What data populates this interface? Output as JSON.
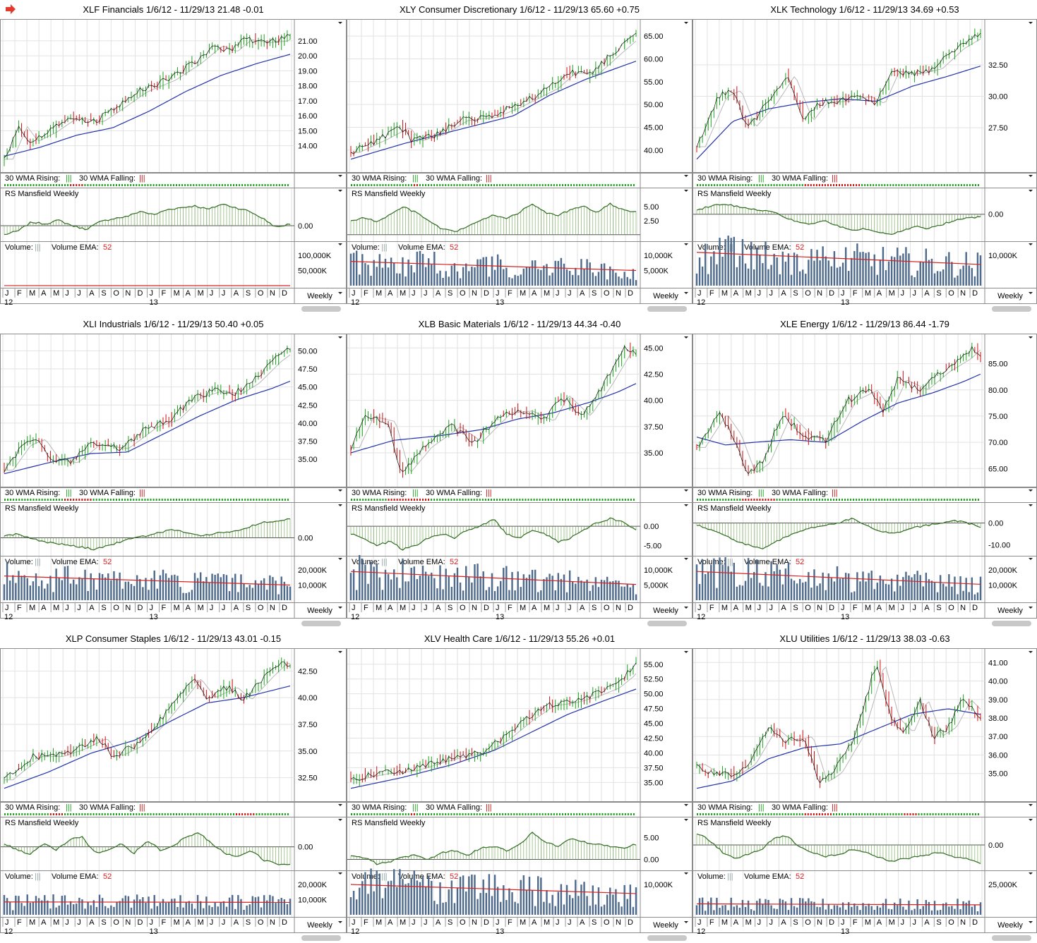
{
  "colors": {
    "bull": "#1aa31a",
    "bear": "#cc1111",
    "wma30": "#2233aa",
    "wma10": "#b8b8b8",
    "rs": "#2e6b1e",
    "volume": "#4d6a8c",
    "ema": "#d82020",
    "grid": "#e2e2e2",
    "border": "#8a8a8a"
  },
  "icons": {
    "title_marker": "red-right-arrow-icon"
  },
  "common": {
    "date_range": "1/6/12 - 11/29/13",
    "wma_rising_label": "30 WMA Rising:",
    "wma_falling_label": "30 WMA Falling:",
    "glyph": "|||",
    "rs_label": "RS Mansfield Weekly",
    "volume_label": "Volume:",
    "volume_ema_label": "Volume EMA:",
    "volume_ema_period": "52",
    "period_label": "Weekly",
    "months": [
      "J",
      "F",
      "M",
      "A",
      "M",
      "J",
      "J",
      "A",
      "S",
      "O",
      "N",
      "D",
      "J",
      "F",
      "M",
      "A",
      "M",
      "J",
      "J",
      "A",
      "S",
      "O",
      "N",
      "D"
    ],
    "year_labels": [
      "12",
      "13"
    ]
  },
  "chart_data": [
    {
      "type": "line",
      "symbol": "XLF",
      "name": "Financials",
      "last": "21.48",
      "change": "-0.01",
      "price_ticks": [
        "21.00",
        "20.00",
        "19.00",
        "18.00",
        "17.00",
        "16.00",
        "15.00",
        "14.00"
      ],
      "price_path": [
        [
          0,
          13.1
        ],
        [
          4,
          15.3
        ],
        [
          7,
          14.3
        ],
        [
          12,
          14.9
        ],
        [
          18,
          15.9
        ],
        [
          25,
          15.6
        ],
        [
          30,
          16.4
        ],
        [
          37,
          17.6
        ],
        [
          45,
          18.4
        ],
        [
          52,
          19.5
        ],
        [
          58,
          20.7
        ],
        [
          62,
          20.3
        ],
        [
          66,
          21.1
        ],
        [
          71,
          20.9
        ],
        [
          76,
          21.0
        ],
        [
          79,
          21.5
        ]
      ],
      "wma30_path": [
        [
          0,
          13.3
        ],
        [
          10,
          13.9
        ],
        [
          20,
          14.7
        ],
        [
          30,
          15.2
        ],
        [
          40,
          16.3
        ],
        [
          50,
          17.6
        ],
        [
          60,
          18.7
        ],
        [
          70,
          19.5
        ],
        [
          79,
          20.1
        ]
      ],
      "falling_weeks": [
        [
          18,
          22
        ]
      ],
      "rs_ticks": [
        "0.00"
      ],
      "rs_values": [
        -5,
        -3,
        2,
        1,
        3,
        0,
        -2,
        2,
        4,
        5,
        8,
        6,
        9,
        10,
        11,
        9,
        12,
        10,
        8,
        4,
        -1,
        1
      ],
      "volume_ticks": [
        "100,000K",
        "50,000K"
      ],
      "volume_ema": [
        88,
        60
      ]
    },
    {
      "type": "line",
      "symbol": "XLY",
      "name": "Consumer Discretionary",
      "last": "65.60",
      "change": "+0.75",
      "price_ticks": [
        "65.00",
        "60.00",
        "55.00",
        "50.00",
        "45.00",
        "40.00"
      ],
      "price_path": [
        [
          0,
          39.5
        ],
        [
          8,
          42.5
        ],
        [
          14,
          45.0
        ],
        [
          17,
          42.0
        ],
        [
          24,
          43.5
        ],
        [
          30,
          46.5
        ],
        [
          38,
          47.2
        ],
        [
          45,
          49.5
        ],
        [
          55,
          53.5
        ],
        [
          60,
          57.0
        ],
        [
          66,
          56.5
        ],
        [
          73,
          61.5
        ],
        [
          79,
          65.6
        ]
      ],
      "wma30_path": [
        [
          0,
          38.0
        ],
        [
          15,
          41.5
        ],
        [
          30,
          44.5
        ],
        [
          45,
          47.5
        ],
        [
          55,
          52.0
        ],
        [
          65,
          55.5
        ],
        [
          79,
          59.5
        ]
      ],
      "falling_weeks": [
        [
          17,
          19
        ]
      ],
      "rs_ticks": [
        "5.00",
        "2.50"
      ],
      "rs_values": [
        2.5,
        3,
        2.4,
        3.5,
        5,
        4,
        2.5,
        1,
        0.5,
        1.5,
        2.5,
        3.5,
        3,
        4,
        5.5,
        4,
        3.5,
        4.5,
        5,
        4,
        5.5,
        4.5,
        4
      ],
      "volume_ticks": [
        "10,000K",
        "5,000K"
      ],
      "volume_ema": [
        8000,
        5000
      ]
    },
    {
      "type": "line",
      "symbol": "XLK",
      "name": "Technology",
      "last": "34.69",
      "change": "+0.53",
      "price_ticks": [
        "32.50",
        "30.00",
        "27.50"
      ],
      "price_path": [
        [
          0,
          26.0
        ],
        [
          6,
          30.0
        ],
        [
          10,
          30.5
        ],
        [
          14,
          27.5
        ],
        [
          20,
          29.5
        ],
        [
          25,
          31.7
        ],
        [
          30,
          28.0
        ],
        [
          34,
          29.5
        ],
        [
          40,
          29.6
        ],
        [
          46,
          30.0
        ],
        [
          50,
          29.4
        ],
        [
          54,
          32.0
        ],
        [
          60,
          31.8
        ],
        [
          66,
          32.2
        ],
        [
          72,
          33.8
        ],
        [
          79,
          35.0
        ]
      ],
      "wma30_path": [
        [
          0,
          25.0
        ],
        [
          10,
          28.0
        ],
        [
          20,
          29.0
        ],
        [
          30,
          29.5
        ],
        [
          40,
          29.8
        ],
        [
          50,
          29.6
        ],
        [
          60,
          30.8
        ],
        [
          70,
          31.6
        ],
        [
          79,
          32.4
        ]
      ],
      "falling_weeks": [
        [
          30,
          46
        ]
      ],
      "rs_ticks": [
        "0.00"
      ],
      "rs_values": [
        2,
        4,
        5,
        4,
        3,
        2,
        1,
        -2,
        -4,
        -5,
        -3,
        -6,
        -8,
        -7,
        -9,
        -10,
        -8,
        -6,
        -7,
        -5,
        -3,
        -2,
        -1
      ],
      "volume_ticks": [
        "10,000K"
      ],
      "volume_ema": [
        11000,
        7000
      ]
    },
    {
      "type": "line",
      "symbol": "XLI",
      "name": "Industrials",
      "last": "50.40",
      "change": "+0.05",
      "price_ticks": [
        "50.00",
        "47.50",
        "45.00",
        "42.50",
        "40.00",
        "37.50",
        "35.00"
      ],
      "price_path": [
        [
          0,
          33.5
        ],
        [
          5,
          37.0
        ],
        [
          9,
          37.8
        ],
        [
          13,
          35.0
        ],
        [
          18,
          34.5
        ],
        [
          24,
          37.0
        ],
        [
          32,
          36.5
        ],
        [
          40,
          39.5
        ],
        [
          46,
          40.5
        ],
        [
          52,
          43.5
        ],
        [
          58,
          44.5
        ],
        [
          63,
          44.0
        ],
        [
          68,
          45.5
        ],
        [
          74,
          48.5
        ],
        [
          79,
          50.4
        ]
      ],
      "wma30_path": [
        [
          0,
          33.0
        ],
        [
          12,
          34.5
        ],
        [
          24,
          35.8
        ],
        [
          34,
          36.0
        ],
        [
          44,
          38.5
        ],
        [
          54,
          41.0
        ],
        [
          64,
          43.2
        ],
        [
          74,
          44.8
        ],
        [
          79,
          45.8
        ]
      ],
      "falling_weeks": [
        [
          16,
          24
        ]
      ],
      "rs_ticks": [
        "0.00"
      ],
      "rs_values": [
        1,
        2,
        0,
        -2,
        -3,
        -4,
        -5,
        -6,
        -4,
        -2,
        0,
        1,
        3,
        4,
        3,
        1,
        2,
        3,
        4,
        6,
        8,
        9,
        10
      ],
      "volume_ticks": [
        "20,000K",
        "10,000K"
      ],
      "volume_ema": [
        16000,
        10000
      ]
    },
    {
      "type": "line",
      "symbol": "XLB",
      "name": "Basic Materials",
      "last": "44.34",
      "change": "-0.40",
      "price_ticks": [
        "45.00",
        "42.50",
        "40.00",
        "37.50",
        "35.00"
      ],
      "price_path": [
        [
          0,
          35.5
        ],
        [
          4,
          38.5
        ],
        [
          10,
          38.0
        ],
        [
          14,
          33.0
        ],
        [
          20,
          35.5
        ],
        [
          28,
          37.5
        ],
        [
          34,
          36.0
        ],
        [
          42,
          38.8
        ],
        [
          48,
          39.0
        ],
        [
          54,
          38.0
        ],
        [
          58,
          40.5
        ],
        [
          64,
          38.5
        ],
        [
          70,
          41.5
        ],
        [
          76,
          45.0
        ],
        [
          79,
          44.3
        ]
      ],
      "wma30_path": [
        [
          0,
          35.0
        ],
        [
          12,
          36.2
        ],
        [
          24,
          36.6
        ],
        [
          36,
          37.2
        ],
        [
          46,
          38.2
        ],
        [
          56,
          38.8
        ],
        [
          66,
          39.8
        ],
        [
          74,
          40.8
        ],
        [
          79,
          41.6
        ]
      ],
      "falling_weeks": [
        [
          10,
          22
        ]
      ],
      "rs_ticks": [
        "0.00",
        "-5.00"
      ],
      "rs_values": [
        -2,
        -3,
        -5,
        -4,
        -6,
        -5,
        -3,
        -2,
        -3,
        -1,
        0,
        2,
        -2,
        -3,
        -1,
        -2,
        -4,
        -3,
        -1,
        1,
        2,
        1,
        -1
      ],
      "volume_ticks": [
        "10,000K",
        "5,000K"
      ],
      "volume_ema": [
        9500,
        5200
      ]
    },
    {
      "type": "line",
      "symbol": "XLE",
      "name": "Energy",
      "last": "86.44",
      "change": "-1.79",
      "price_ticks": [
        "85.00",
        "80.00",
        "75.00",
        "70.00",
        "65.00"
      ],
      "price_path": [
        [
          0,
          69.0
        ],
        [
          6,
          75.5
        ],
        [
          10,
          71.5
        ],
        [
          14,
          64.0
        ],
        [
          18,
          66.0
        ],
        [
          24,
          75.5
        ],
        [
          30,
          71.0
        ],
        [
          36,
          70.5
        ],
        [
          42,
          78.0
        ],
        [
          48,
          80.0
        ],
        [
          52,
          76.0
        ],
        [
          56,
          82.0
        ],
        [
          62,
          80.0
        ],
        [
          68,
          83.5
        ],
        [
          74,
          86.0
        ],
        [
          77,
          88.0
        ],
        [
          79,
          86.4
        ]
      ],
      "wma30_path": [
        [
          0,
          71.0
        ],
        [
          8,
          69.5
        ],
        [
          16,
          70.0
        ],
        [
          26,
          70.5
        ],
        [
          36,
          70.0
        ],
        [
          46,
          74.0
        ],
        [
          56,
          77.5
        ],
        [
          66,
          79.5
        ],
        [
          74,
          81.5
        ],
        [
          79,
          83.0
        ]
      ],
      "falling_weeks": [
        [
          12,
          22
        ]
      ],
      "rs_ticks": [
        "0.00",
        "-10.00"
      ],
      "rs_values": [
        -1,
        -3,
        -5,
        -8,
        -10,
        -12,
        -9,
        -6,
        -4,
        -2,
        -1,
        0,
        2,
        -1,
        -3,
        -5,
        -4,
        -2,
        -1,
        0,
        1,
        0,
        -2
      ],
      "volume_ticks": [
        "20,000K",
        "10,000K"
      ],
      "volume_ema": [
        19000,
        10500
      ]
    },
    {
      "type": "line",
      "symbol": "XLP",
      "name": "Consumer Staples",
      "last": "43.01",
      "change": "-0.15",
      "price_ticks": [
        "42.50",
        "40.00",
        "37.50",
        "35.00",
        "32.50"
      ],
      "price_path": [
        [
          0,
          32.3
        ],
        [
          8,
          34.5
        ],
        [
          14,
          34.5
        ],
        [
          20,
          35.2
        ],
        [
          26,
          36.2
        ],
        [
          30,
          34.5
        ],
        [
          36,
          35.5
        ],
        [
          42,
          37.5
        ],
        [
          48,
          40.0
        ],
        [
          52,
          41.8
        ],
        [
          56,
          40.0
        ],
        [
          62,
          41.0
        ],
        [
          66,
          39.8
        ],
        [
          72,
          42.0
        ],
        [
          76,
          43.3
        ],
        [
          79,
          43.0
        ]
      ],
      "wma30_path": [
        [
          0,
          31.5
        ],
        [
          12,
          33.0
        ],
        [
          24,
          34.8
        ],
        [
          36,
          36.0
        ],
        [
          46,
          37.8
        ],
        [
          56,
          39.5
        ],
        [
          66,
          40.0
        ],
        [
          79,
          41.1
        ]
      ],
      "falling_weeks": [
        [
          12,
          16
        ],
        [
          64,
          70
        ]
      ],
      "rs_ticks": [
        "0.00"
      ],
      "rs_values": [
        1,
        -1,
        -2,
        1,
        -1,
        2,
        3,
        -2,
        -1,
        1,
        -2,
        2,
        -1,
        0,
        3,
        4,
        1,
        -2,
        -3,
        -1,
        -4,
        -5,
        -5
      ],
      "volume_ticks": [
        "20,000K",
        "10,000K"
      ],
      "volume_ema": [
        8500,
        8200
      ]
    },
    {
      "type": "line",
      "symbol": "XLV",
      "name": "Health Care",
      "last": "55.26",
      "change": "+0.01",
      "price_ticks": [
        "55.00",
        "52.50",
        "50.00",
        "47.50",
        "45.00",
        "42.50",
        "40.00",
        "37.50",
        "35.00"
      ],
      "price_path": [
        [
          0,
          35.5
        ],
        [
          8,
          36.5
        ],
        [
          16,
          37.0
        ],
        [
          24,
          38.5
        ],
        [
          30,
          39.5
        ],
        [
          36,
          40.0
        ],
        [
          42,
          42.5
        ],
        [
          48,
          45.5
        ],
        [
          54,
          48.0
        ],
        [
          60,
          48.5
        ],
        [
          66,
          49.5
        ],
        [
          72,
          51.0
        ],
        [
          76,
          53.0
        ],
        [
          79,
          55.3
        ]
      ],
      "wma30_path": [
        [
          0,
          34.0
        ],
        [
          14,
          35.8
        ],
        [
          28,
          38.0
        ],
        [
          40,
          40.5
        ],
        [
          50,
          43.5
        ],
        [
          60,
          46.5
        ],
        [
          70,
          48.8
        ],
        [
          79,
          50.8
        ]
      ],
      "falling_weeks": [
        [
          16,
          18
        ]
      ],
      "rs_ticks": [
        "5.00",
        "0.00"
      ],
      "rs_values": [
        1,
        0.5,
        -1,
        -0.5,
        0.5,
        1,
        0,
        1.5,
        2,
        1,
        2.5,
        3,
        2,
        3.5,
        6,
        4,
        3,
        5,
        4,
        3.5,
        3,
        2.5,
        3.5
      ],
      "volume_ticks": [
        "10,000K"
      ],
      "volume_ema": [
        10000,
        7000
      ]
    },
    {
      "type": "line",
      "symbol": "XLU",
      "name": "Utilities",
      "last": "38.03",
      "change": "-0.63",
      "price_ticks": [
        "41.00",
        "40.00",
        "39.00",
        "38.00",
        "37.00",
        "36.00",
        "35.00"
      ],
      "price_path": [
        [
          0,
          35.5
        ],
        [
          4,
          35.0
        ],
        [
          10,
          35.0
        ],
        [
          14,
          35.5
        ],
        [
          20,
          37.5
        ],
        [
          24,
          36.8
        ],
        [
          30,
          37.0
        ],
        [
          34,
          34.5
        ],
        [
          38,
          35.0
        ],
        [
          44,
          37.0
        ],
        [
          50,
          41.0
        ],
        [
          54,
          38.0
        ],
        [
          58,
          37.2
        ],
        [
          62,
          39.0
        ],
        [
          66,
          37.0
        ],
        [
          70,
          37.5
        ],
        [
          74,
          39.0
        ],
        [
          79,
          38.0
        ]
      ],
      "wma30_path": [
        [
          0,
          34.2
        ],
        [
          10,
          34.6
        ],
        [
          20,
          35.8
        ],
        [
          30,
          36.4
        ],
        [
          40,
          36.6
        ],
        [
          50,
          37.4
        ],
        [
          60,
          38.2
        ],
        [
          70,
          38.5
        ],
        [
          79,
          38.2
        ]
      ],
      "falling_weeks": [
        [
          30,
          38
        ],
        [
          58,
          62
        ]
      ],
      "rs_ticks": [
        "0.00"
      ],
      "rs_values": [
        5,
        2,
        -3,
        -6,
        -4,
        -2,
        3,
        4,
        -1,
        -3,
        -5,
        -4,
        -2,
        -3,
        -5,
        -7,
        -6,
        -5,
        -4,
        -3,
        -5,
        -6,
        -8
      ],
      "volume_ticks": [
        "25,000K"
      ],
      "volume_ema": [
        9000,
        8200
      ]
    }
  ]
}
